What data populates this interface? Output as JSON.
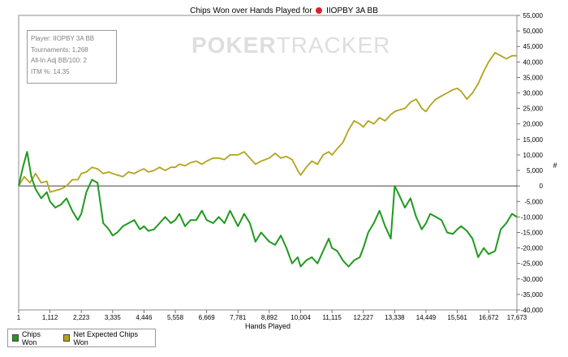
{
  "window": {
    "title_prefix": "Chips Won over Hands Played for",
    "title_player": "IIOPBY 3A BB"
  },
  "watermark": {
    "bold": "POKER",
    "thin": "TRACKER"
  },
  "stats_box": [
    "Player: IIOPBY 3A BB",
    "Tournaments: 1,268",
    "All-In Adj BB/100: 2",
    "ITM %: 14.35"
  ],
  "colors": {
    "chips_won": "#1f9a1f",
    "net_expected": "#b2a41e",
    "zero_line": "#000000"
  },
  "chart_data": {
    "type": "line",
    "title": "Chips Won over Hands Played for IIOPBY 3A BB",
    "xlabel": "Hands Played",
    "ylabel": "#",
    "xlim": [
      1,
      17673
    ],
    "ylim": [
      -40000,
      55000
    ],
    "x_ticks": [
      "1",
      "1,112",
      "2,223",
      "3,335",
      "4,446",
      "5,558",
      "6,669",
      "7,781",
      "8,892",
      "10,004",
      "11,115",
      "12,227",
      "13,338",
      "14,449",
      "15,561",
      "16,672",
      "17,673"
    ],
    "y_ticks": [
      "55,000",
      "50,000",
      "45,000",
      "40,000",
      "35,000",
      "30,000",
      "25,000",
      "20,000",
      "15,000",
      "10,000",
      "5,000",
      "0",
      "-5,000",
      "-10,000",
      "-15,000",
      "-20,000",
      "-25,000",
      "-30,000",
      "-35,000",
      "-40,000"
    ],
    "grid": false,
    "legend_position": "bottom-left",
    "series": [
      {
        "name": "Chips Won",
        "x": [
          1,
          150,
          300,
          450,
          600,
          800,
          1000,
          1112,
          1300,
          1500,
          1700,
          1900,
          2100,
          2223,
          2400,
          2600,
          2800,
          3000,
          3200,
          3335,
          3500,
          3700,
          3900,
          4100,
          4300,
          4446,
          4600,
          4800,
          5000,
          5200,
          5400,
          5558,
          5700,
          5900,
          6100,
          6300,
          6500,
          6669,
          6900,
          7100,
          7300,
          7500,
          7781,
          8000,
          8200,
          8400,
          8600,
          8892,
          9100,
          9300,
          9500,
          9700,
          9900,
          10004,
          10200,
          10400,
          10600,
          10800,
          11000,
          11115,
          11300,
          11500,
          11700,
          11900,
          12100,
          12227,
          12400,
          12600,
          12800,
          13000,
          13200,
          13338,
          13500,
          13700,
          13900,
          14100,
          14300,
          14449,
          14600,
          14800,
          15000,
          15200,
          15400,
          15561,
          15700,
          15900,
          16100,
          16300,
          16500,
          16672,
          16900,
          17100,
          17300,
          17500,
          17673
        ],
        "y": [
          0,
          6000,
          11000,
          3000,
          -1000,
          -4000,
          -2000,
          -5000,
          -7000,
          -6000,
          -4000,
          -8000,
          -11000,
          -9000,
          -2000,
          2000,
          1000,
          -12000,
          -14000,
          -16000,
          -15000,
          -13000,
          -12000,
          -11000,
          -14000,
          -13000,
          -14500,
          -14000,
          -12000,
          -10000,
          -12000,
          -11000,
          -9000,
          -13000,
          -11000,
          -11000,
          -8000,
          -11000,
          -12000,
          -10000,
          -12000,
          -8000,
          -13000,
          -9000,
          -12000,
          -18000,
          -15000,
          -18000,
          -19000,
          -16000,
          -20000,
          -25000,
          -23000,
          -26000,
          -24000,
          -23000,
          -25000,
          -21000,
          -17000,
          -20000,
          -21000,
          -24000,
          -26000,
          -24000,
          -23000,
          -20000,
          -15000,
          -12000,
          -8000,
          -13000,
          -17000,
          0,
          -3000,
          -7000,
          -4000,
          -10000,
          -14000,
          -12000,
          -9000,
          -10000,
          -11000,
          -15000,
          -15500,
          -14000,
          -13000,
          -14500,
          -17000,
          -23000,
          -20000,
          -22000,
          -21000,
          -14000,
          -12000,
          -9000,
          -10000
        ],
        "color": "#1f9a1f"
      },
      {
        "name": "Net Expected Chips Won",
        "x": [
          1,
          200,
          400,
          600,
          800,
          1000,
          1112,
          1300,
          1500,
          1700,
          1900,
          2100,
          2223,
          2400,
          2600,
          2800,
          3000,
          3200,
          3335,
          3500,
          3700,
          3900,
          4100,
          4300,
          4446,
          4600,
          4800,
          5000,
          5200,
          5400,
          5558,
          5700,
          5900,
          6100,
          6300,
          6500,
          6669,
          6900,
          7100,
          7300,
          7500,
          7781,
          8000,
          8200,
          8400,
          8600,
          8892,
          9100,
          9300,
          9500,
          9700,
          9900,
          10004,
          10200,
          10400,
          10600,
          10800,
          11000,
          11115,
          11300,
          11500,
          11700,
          11900,
          12100,
          12227,
          12400,
          12600,
          12800,
          13000,
          13200,
          13338,
          13500,
          13700,
          13900,
          14100,
          14300,
          14449,
          14600,
          14800,
          15000,
          15200,
          15400,
          15561,
          15700,
          15900,
          16100,
          16300,
          16500,
          16672,
          16900,
          17100,
          17300,
          17500,
          17673
        ],
        "y": [
          0,
          3000,
          1000,
          4000,
          1000,
          1500,
          -2000,
          -1500,
          -1000,
          0,
          2000,
          2000,
          4000,
          4500,
          6000,
          5500,
          4000,
          4500,
          4000,
          3500,
          3000,
          4500,
          4000,
          5000,
          5500,
          4500,
          5000,
          6000,
          5000,
          6000,
          6000,
          7000,
          6500,
          7500,
          8000,
          7000,
          8000,
          9000,
          9000,
          8500,
          10000,
          10000,
          11000,
          9000,
          7000,
          8000,
          9000,
          10500,
          9000,
          9500,
          8500,
          5000,
          3500,
          6000,
          8000,
          7000,
          10000,
          11000,
          10000,
          12000,
          14000,
          18000,
          21000,
          20000,
          19000,
          21000,
          20000,
          22000,
          21000,
          23000,
          24000,
          24500,
          25000,
          27000,
          28000,
          25000,
          24000,
          26000,
          28000,
          29000,
          30000,
          31000,
          31500,
          30500,
          28000,
          30000,
          33000,
          37000,
          40000,
          43000,
          42000,
          41000,
          42000,
          42000
        ],
        "color": "#b2a41e"
      }
    ]
  }
}
